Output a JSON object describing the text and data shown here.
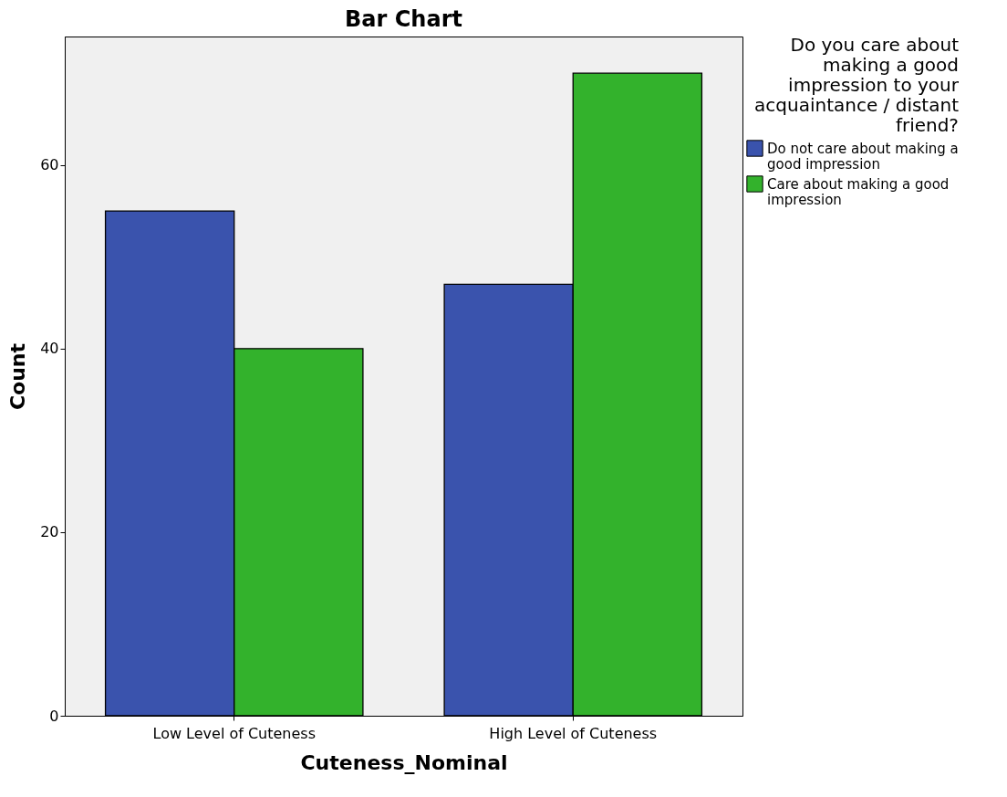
{
  "chart_data": {
    "type": "bar",
    "title": "Bar Chart",
    "xlabel": "Cuteness_Nominal",
    "ylabel": "Count",
    "legend_title": "Do you care about making a good impression to your acquaintance / distant friend?",
    "categories": [
      "Low Level of Cuteness",
      "High Level of Cuteness"
    ],
    "series": [
      {
        "name": "Do not care about making a good impression",
        "color": "#3a53ad",
        "values": [
          55,
          47
        ]
      },
      {
        "name": "Care about making a good impression",
        "color": "#33b22c",
        "values": [
          40,
          70
        ]
      }
    ],
    "ylim": [
      0,
      74
    ],
    "yticks": [
      0,
      20,
      40,
      60
    ],
    "grid": false,
    "legend": "right"
  }
}
